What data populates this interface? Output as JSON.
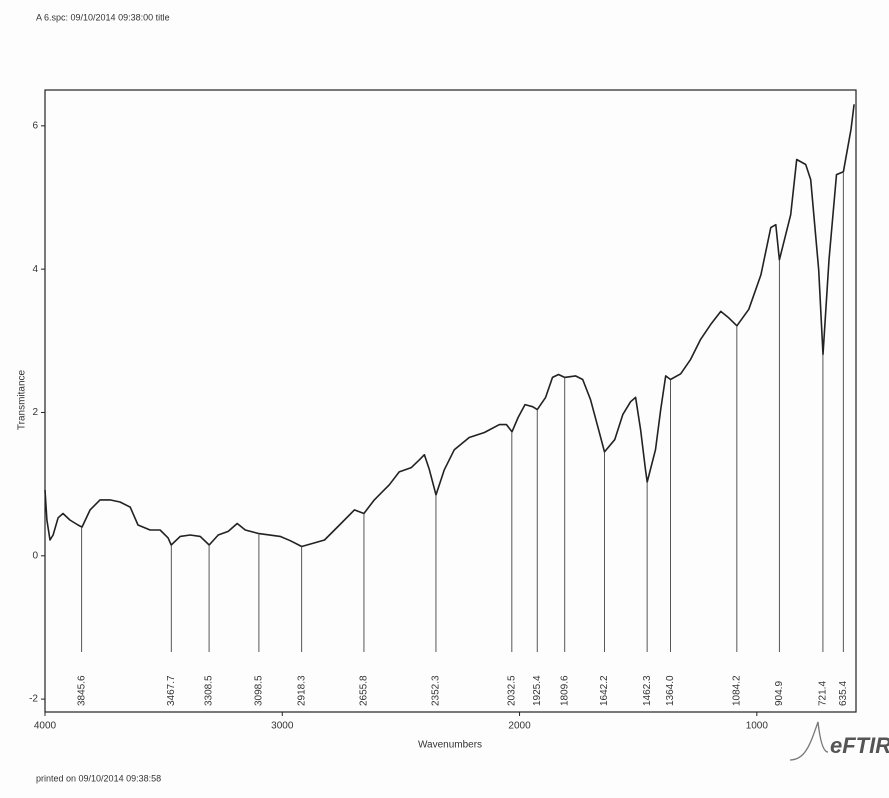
{
  "chart_data": {
    "type": "line",
    "title": "A 6.spc: 09/10/2014 09:38:00 title",
    "footer": "printed on 09/10/2014 09:38:58",
    "logo": "eFTIR",
    "xlabel": "Wavenumbers",
    "ylabel": "Transmitance",
    "xlim": [
      4000,
      582
    ],
    "ylim": [
      -2.18,
      6.5
    ],
    "xticks": [
      4000,
      3000,
      2000,
      1000
    ],
    "yticks": [
      -2,
      0,
      2,
      4,
      6
    ],
    "color": "#222222",
    "x": [
      4000,
      3992,
      3979,
      3966,
      3945,
      3924,
      3895,
      3861,
      3844,
      3810,
      3768,
      3726,
      3684,
      3641,
      3608,
      3557,
      3515,
      3481,
      3468,
      3430,
      3388,
      3346,
      3308,
      3270,
      3228,
      3190,
      3156,
      3098,
      3009,
      2966,
      2918,
      2864,
      2822,
      2759,
      2696,
      2656,
      2612,
      2549,
      2507,
      2456,
      2422,
      2401,
      2380,
      2352,
      2317,
      2275,
      2212,
      2148,
      2085,
      2055,
      2032,
      2006,
      1977,
      1945,
      1925,
      1890,
      1861,
      1836,
      1810,
      1764,
      1734,
      1701,
      1667,
      1642,
      1599,
      1565,
      1532,
      1511,
      1490,
      1469,
      1462,
      1427,
      1405,
      1384,
      1364,
      1321,
      1279,
      1237,
      1194,
      1152,
      1118,
      1084,
      1034,
      983,
      941,
      920,
      905,
      857,
      832,
      794,
      773,
      739,
      721,
      696,
      664,
      635,
      603,
      590
    ],
    "values": [
      0.92,
      0.5,
      0.22,
      0.29,
      0.53,
      0.59,
      0.5,
      0.43,
      0.4,
      0.64,
      0.78,
      0.78,
      0.75,
      0.68,
      0.43,
      0.36,
      0.36,
      0.25,
      0.15,
      0.27,
      0.29,
      0.27,
      0.15,
      0.29,
      0.34,
      0.45,
      0.36,
      0.31,
      0.27,
      0.21,
      0.13,
      0.18,
      0.22,
      0.43,
      0.64,
      0.59,
      0.78,
      0.99,
      1.17,
      1.23,
      1.34,
      1.41,
      1.2,
      0.85,
      1.2,
      1.48,
      1.65,
      1.72,
      1.83,
      1.83,
      1.73,
      1.93,
      2.11,
      2.08,
      2.04,
      2.21,
      2.49,
      2.53,
      2.49,
      2.51,
      2.46,
      2.18,
      1.76,
      1.45,
      1.62,
      1.97,
      2.15,
      2.21,
      1.76,
      1.2,
      1.03,
      1.48,
      2.04,
      2.51,
      2.46,
      2.54,
      2.74,
      3.02,
      3.23,
      3.41,
      3.32,
      3.21,
      3.44,
      3.92,
      4.58,
      4.62,
      4.13,
      4.76,
      5.53,
      5.46,
      5.25,
      3.99,
      2.81,
      4.13,
      5.32,
      5.36,
      5.95,
      6.3
    ],
    "peaks": [
      {
        "x": 3845.6,
        "y": 0.4,
        "label": "3845.6"
      },
      {
        "x": 3467.7,
        "y": 0.15,
        "label": "3467.7"
      },
      {
        "x": 3308.5,
        "y": 0.15,
        "label": "3308.5"
      },
      {
        "x": 3098.5,
        "y": 0.31,
        "label": "3098.5"
      },
      {
        "x": 2918.3,
        "y": 0.13,
        "label": "2918.3"
      },
      {
        "x": 2655.8,
        "y": 0.59,
        "label": "2655.8"
      },
      {
        "x": 2352.3,
        "y": 0.85,
        "label": "2352.3"
      },
      {
        "x": 2032.5,
        "y": 1.73,
        "label": "2032.5"
      },
      {
        "x": 1925.4,
        "y": 2.04,
        "label": "1925.4"
      },
      {
        "x": 1809.6,
        "y": 2.49,
        "label": "1809.6"
      },
      {
        "x": 1642.2,
        "y": 1.45,
        "label": "1642.2"
      },
      {
        "x": 1462.3,
        "y": 1.03,
        "label": "1462.3"
      },
      {
        "x": 1364,
        "y": 2.46,
        "label": "1364.0"
      },
      {
        "x": 1084.2,
        "y": 3.21,
        "label": "1084.2"
      },
      {
        "x": 904.9,
        "y": 4.13,
        "label": "904.9"
      },
      {
        "x": 721.4,
        "y": 2.81,
        "label": "721.4"
      },
      {
        "x": 635.4,
        "y": 5.36,
        "label": "635.4"
      }
    ]
  }
}
